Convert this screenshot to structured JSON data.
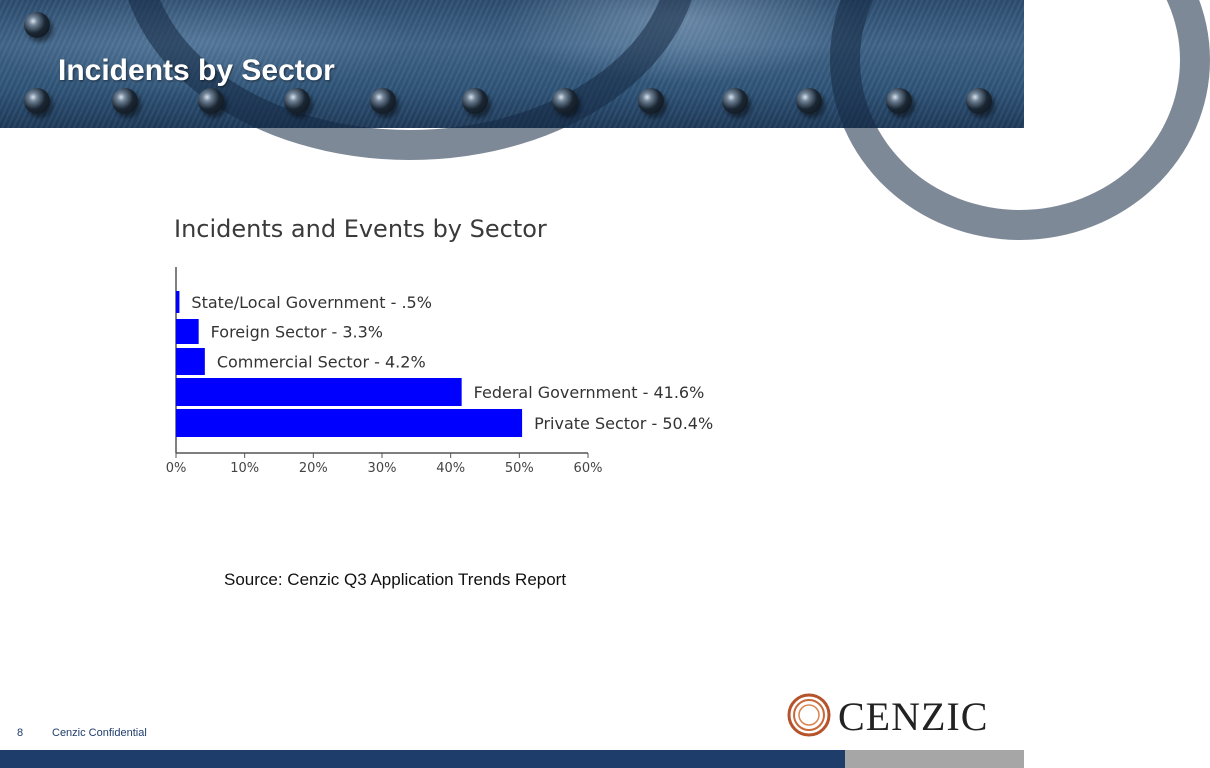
{
  "slide": {
    "title": "Incidents by Sector",
    "source": "Source: Cenzic Q3 Application Trends Report",
    "page_number": "8",
    "confidential": "Cenzic Confidential",
    "logo_text": "CENZIC"
  },
  "colors": {
    "bar": "#0000ff",
    "header": "#2f5478",
    "footer": "#1f3d6b",
    "logo_ring": "#b5532a"
  },
  "chart_data": {
    "type": "bar",
    "orientation": "horizontal",
    "title": "Incidents and Events by Sector",
    "categories": [
      "State/Local Government",
      "Foreign Sector",
      "Commercial Sector",
      "Federal Government",
      "Private Sector"
    ],
    "values": [
      0.5,
      3.3,
      4.2,
      41.6,
      50.4
    ],
    "data_labels": [
      "State/Local Government - .5%",
      "Foreign Sector - 3.3%",
      "Commercial Sector - 4.2%",
      "Federal Government - 41.6%",
      "Private Sector - 50.4%"
    ],
    "xlim": [
      0,
      60
    ],
    "x_ticks": [
      "0%",
      "10%",
      "20%",
      "30%",
      "40%",
      "50%",
      "60%"
    ],
    "xlabel": "",
    "ylabel": "",
    "grid": false,
    "legend": "none"
  }
}
